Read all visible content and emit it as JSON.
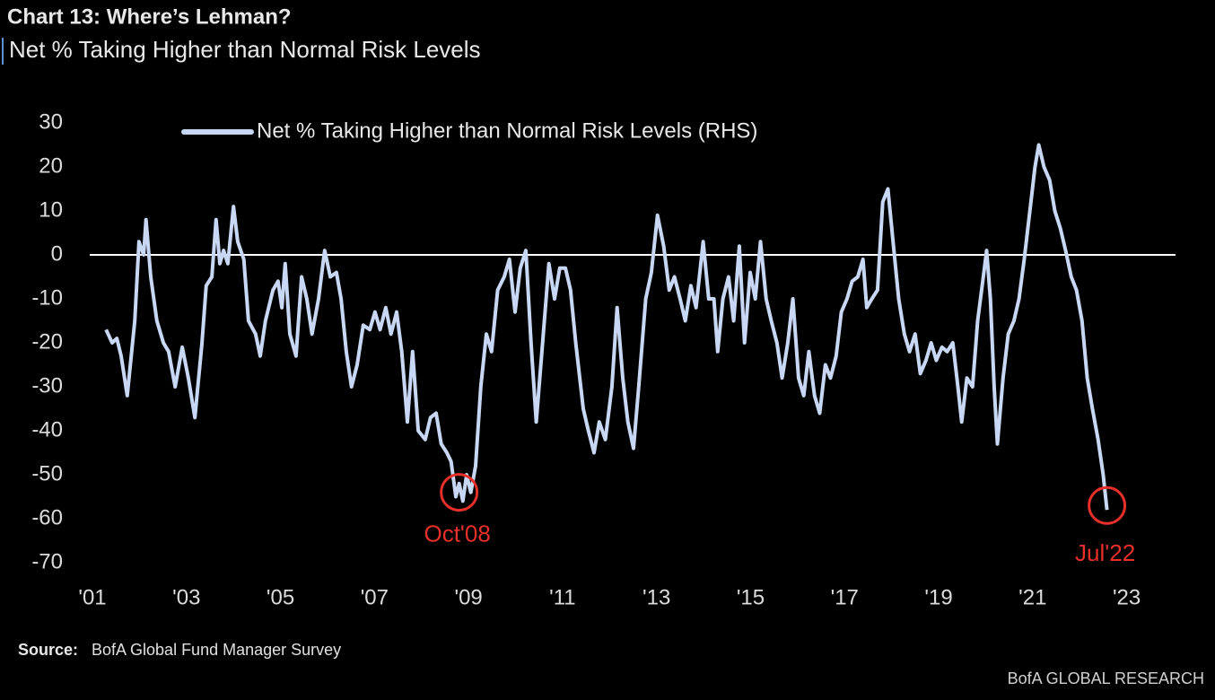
{
  "chart_data": {
    "type": "line",
    "title": "Chart 13: Where’s Lehman?",
    "subtitle": "Net % Taking Higher than Normal Risk Levels",
    "source_label": "Source:",
    "source": "BofA Global Fund Manager Survey",
    "branding": "BofA GLOBAL RESEARCH",
    "xlim": [
      2001,
      2024
    ],
    "xticks": [
      {
        "value": 2001,
        "label": "'01"
      },
      {
        "value": 2003,
        "label": "'03"
      },
      {
        "value": 2005,
        "label": "'05"
      },
      {
        "value": 2007,
        "label": "'07"
      },
      {
        "value": 2009,
        "label": "'09"
      },
      {
        "value": 2011,
        "label": "'11"
      },
      {
        "value": 2013,
        "label": "'13"
      },
      {
        "value": 2015,
        "label": "'15"
      },
      {
        "value": 2017,
        "label": "'17"
      },
      {
        "value": 2019,
        "label": "'19"
      },
      {
        "value": 2021,
        "label": "'21"
      },
      {
        "value": 2023,
        "label": "'23"
      }
    ],
    "ylim": [
      -70,
      30
    ],
    "yticks": [
      -70,
      -60,
      -50,
      -40,
      -30,
      -20,
      -10,
      0,
      10,
      20,
      30
    ],
    "reference_line": 0,
    "grid": false,
    "legend": "top-left",
    "x": [
      2001.29,
      2001.42,
      2001.52,
      2001.61,
      2001.74,
      2001.9,
      2001.99,
      2002.09,
      2002.14,
      2002.24,
      2002.37,
      2002.51,
      2002.62,
      2002.76,
      2002.91,
      2003.04,
      2003.18,
      2003.33,
      2003.42,
      2003.54,
      2003.63,
      2003.71,
      2003.79,
      2003.88,
      2004.0,
      2004.09,
      2004.22,
      2004.32,
      2004.47,
      2004.57,
      2004.68,
      2004.84,
      2004.95,
      2005.03,
      2005.1,
      2005.2,
      2005.33,
      2005.45,
      2005.56,
      2005.67,
      2005.81,
      2005.94,
      2006.06,
      2006.19,
      2006.29,
      2006.4,
      2006.51,
      2006.63,
      2006.76,
      2006.9,
      2007.01,
      2007.12,
      2007.24,
      2007.35,
      2007.47,
      2007.58,
      2007.7,
      2007.81,
      2007.93,
      2008.08,
      2008.19,
      2008.31,
      2008.42,
      2008.54,
      2008.63,
      2008.73,
      2008.8,
      2008.88,
      2008.96,
      2009.05,
      2009.15,
      2009.26,
      2009.38,
      2009.49,
      2009.62,
      2009.76,
      2009.87,
      2009.99,
      2010.1,
      2010.22,
      2010.33,
      2010.44,
      2010.56,
      2010.71,
      2010.83,
      2010.94,
      2011.06,
      2011.17,
      2011.28,
      2011.44,
      2011.55,
      2011.67,
      2011.78,
      2011.91,
      2012.05,
      2012.16,
      2012.28,
      2012.39,
      2012.51,
      2012.62,
      2012.77,
      2012.89,
      2013.02,
      2013.15,
      2013.27,
      2013.38,
      2013.5,
      2013.61,
      2013.73,
      2013.84,
      2013.99,
      2014.11,
      2014.22,
      2014.3,
      2014.41,
      2014.53,
      2014.64,
      2014.76,
      2014.87,
      2014.99,
      2015.1,
      2015.21,
      2015.33,
      2015.44,
      2015.56,
      2015.67,
      2015.79,
      2015.9,
      2016.02,
      2016.13,
      2016.24,
      2016.36,
      2016.47,
      2016.59,
      2016.7,
      2016.82,
      2016.93,
      2017.05,
      2017.16,
      2017.28,
      2017.39,
      2017.47,
      2017.58,
      2017.7,
      2017.81,
      2017.92,
      2018.04,
      2018.15,
      2018.27,
      2018.38,
      2018.5,
      2018.61,
      2018.73,
      2018.84,
      2018.95,
      2019.07,
      2019.18,
      2019.3,
      2019.41,
      2019.49,
      2019.6,
      2019.72,
      2019.83,
      2019.95,
      2020.02,
      2020.1,
      2020.18,
      2020.25,
      2020.37,
      2020.48,
      2020.6,
      2020.71,
      2020.82,
      2020.94,
      2021.05,
      2021.13,
      2021.24,
      2021.36,
      2021.47,
      2021.59,
      2021.7,
      2021.82,
      2021.93,
      2022.05,
      2022.16,
      2022.27,
      2022.39,
      2022.5,
      2022.58
    ],
    "series": [
      {
        "name": "Net % Taking Higher than Normal Risk Levels (RHS)",
        "color": "#c8d7f4",
        "values": [
          -17,
          -20,
          -19,
          -23,
          -32,
          -15,
          3,
          0,
          8,
          -5,
          -15,
          -20,
          -22,
          -30,
          -21,
          -28,
          -37,
          -20,
          -7,
          -5,
          8,
          -2,
          1,
          -2,
          11,
          3,
          -1,
          -15,
          -18,
          -23,
          -15,
          -8,
          -6,
          -12,
          -2,
          -18,
          -23,
          -5,
          -10,
          -18,
          -10,
          1,
          -5,
          -4,
          -10,
          -22,
          -30,
          -25,
          -16,
          -17,
          -13,
          -17,
          -12,
          -18,
          -13,
          -22,
          -38,
          -22,
          -40,
          -42,
          -37,
          -36,
          -43,
          -45,
          -47,
          -55,
          -52,
          -56,
          -50,
          -54,
          -48,
          -30,
          -18,
          -22,
          -8,
          -5,
          -1,
          -13,
          -3,
          1,
          -20,
          -38,
          -22,
          -2,
          -10,
          -3,
          -3,
          -8,
          -20,
          -35,
          -40,
          -45,
          -38,
          -42,
          -30,
          -12,
          -28,
          -38,
          -44,
          -30,
          -10,
          -4,
          9,
          2,
          -8,
          -5,
          -10,
          -15,
          -7,
          -12,
          3,
          -10,
          -10,
          -22,
          -10,
          -5,
          -15,
          2,
          -20,
          -4,
          -10,
          3,
          -10,
          -15,
          -20,
          -28,
          -20,
          -10,
          -28,
          -32,
          -22,
          -32,
          -36,
          -25,
          -28,
          -23,
          -13,
          -10,
          -6,
          -5,
          -1,
          -12,
          -10,
          -8,
          12,
          15,
          2,
          -10,
          -18,
          -22,
          -18,
          -27,
          -24,
          -20,
          -24,
          -21,
          -22,
          -20,
          -30,
          -38,
          -28,
          -30,
          -15,
          -5,
          1,
          -10,
          -30,
          -43,
          -28,
          -18,
          -15,
          -10,
          -1,
          10,
          20,
          25,
          20,
          17,
          10,
          6,
          1,
          -5,
          -8,
          -15,
          -28,
          -35,
          -42,
          -50,
          -58
        ]
      }
    ],
    "annotations": [
      {
        "text": "Oct'08",
        "x": 2008.8,
        "y": -54
      },
      {
        "text": "Jul'22",
        "x": 2022.58,
        "y": -57
      }
    ]
  }
}
